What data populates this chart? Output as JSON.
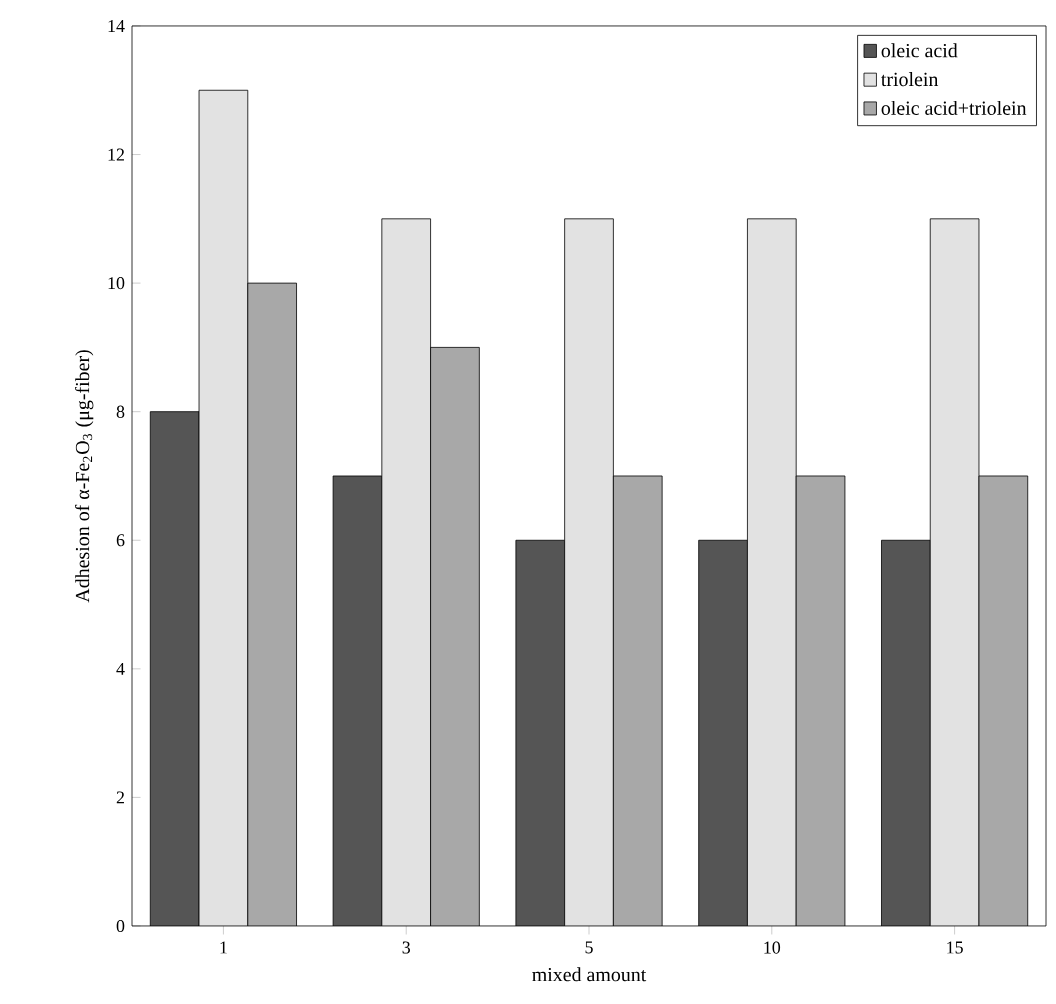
{
  "chart_data": {
    "type": "bar",
    "xlabel": "mixed amount",
    "ylabel": "Adhesion of α-Fe$_{2}$O$_{3}$ (μg-fiber)",
    "categories": [
      "1",
      "3",
      "5",
      "10",
      "15"
    ],
    "series": [
      {
        "name": "oleic acid",
        "color": "#555555",
        "values": [
          8,
          7,
          6,
          6,
          6
        ]
      },
      {
        "name": "triolein",
        "color": "#e2e2e2",
        "values": [
          13,
          11,
          11,
          11,
          11
        ]
      },
      {
        "name": "oleic acid+triolein",
        "color": "#a8a8a8",
        "values": [
          10,
          9,
          7,
          7,
          7
        ]
      }
    ],
    "ylim": [
      0,
      14
    ],
    "yticks": [
      0,
      2,
      4,
      6,
      8,
      10,
      12,
      14
    ],
    "legend": "top right",
    "grid": false
  }
}
